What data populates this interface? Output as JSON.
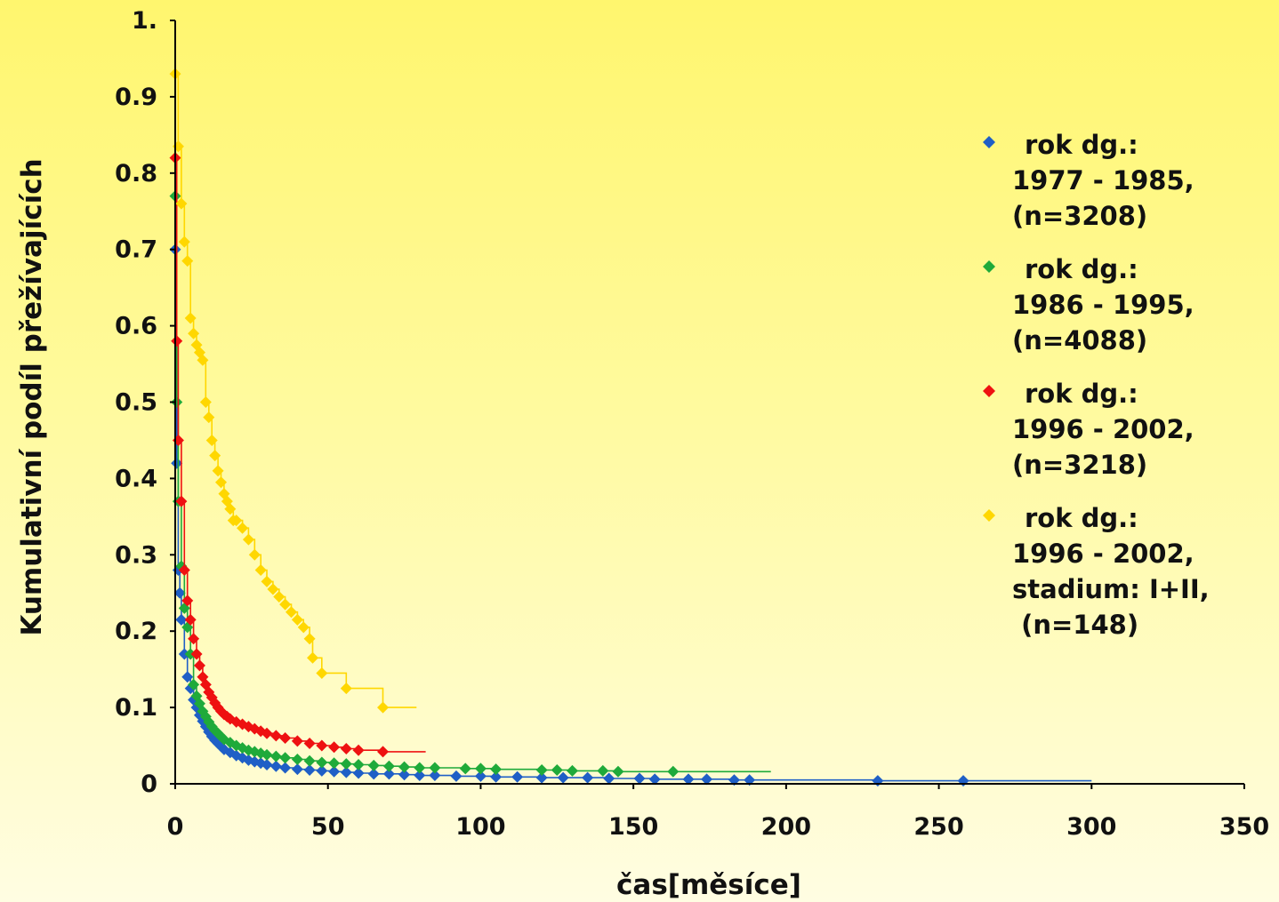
{
  "chart_data": {
    "type": "line",
    "title": "",
    "xlabel": "čas[měsíce]",
    "ylabel": "Kumulativní podíl přežívajících",
    "xlim": [
      0,
      350
    ],
    "ylim": [
      0,
      1
    ],
    "x_ticks": [
      "0",
      "50",
      "100",
      "150",
      "200",
      "250",
      "300",
      "350"
    ],
    "y_ticks": [
      "0",
      "0.1",
      "0.2",
      "0.3",
      "0.4",
      "0.5",
      "0.6",
      "0.7",
      "0.8",
      "0.9",
      "1."
    ],
    "grid": false,
    "legend_position": "right",
    "step": true,
    "series": [
      {
        "name": "rok dg.: 1977 - 1985, (n=3208)",
        "legend_lines": [
          "rok dg.:",
          "1977 - 1985,",
          "(n=3208)"
        ],
        "color": "#1f5fc6",
        "x": [
          0,
          0.5,
          1,
          1.5,
          2,
          3,
          4,
          5,
          6,
          7,
          8,
          9,
          10,
          11,
          12,
          13,
          14,
          15,
          16,
          18,
          20,
          22,
          24,
          26,
          28,
          30,
          33,
          36,
          40,
          44,
          48,
          52,
          56,
          60,
          65,
          70,
          75,
          80,
          85,
          92,
          100,
          105,
          112,
          120,
          127,
          135,
          142,
          152,
          157,
          168,
          174,
          183,
          188,
          230,
          258
        ],
        "y": [
          0.7,
          0.42,
          0.28,
          0.25,
          0.215,
          0.17,
          0.14,
          0.125,
          0.11,
          0.1,
          0.09,
          0.082,
          0.075,
          0.068,
          0.062,
          0.057,
          0.053,
          0.049,
          0.045,
          0.041,
          0.037,
          0.034,
          0.031,
          0.029,
          0.027,
          0.025,
          0.023,
          0.021,
          0.019,
          0.018,
          0.017,
          0.016,
          0.015,
          0.014,
          0.013,
          0.013,
          0.012,
          0.011,
          0.011,
          0.01,
          0.01,
          0.009,
          0.009,
          0.008,
          0.008,
          0.008,
          0.007,
          0.007,
          0.006,
          0.006,
          0.006,
          0.005,
          0.005,
          0.004,
          0.004
        ],
        "end_x": 300
      },
      {
        "name": "rok dg.: 1986 - 1995, (n=4088)",
        "legend_lines": [
          "rok dg.:",
          "1986 - 1995,",
          "(n=4088)"
        ],
        "color": "#1faa3a",
        "x": [
          0,
          0.5,
          1,
          2,
          3,
          4,
          5,
          6,
          7,
          8,
          9,
          10,
          11,
          12,
          13,
          14,
          15,
          16,
          18,
          20,
          22,
          24,
          26,
          28,
          30,
          33,
          36,
          40,
          44,
          48,
          52,
          56,
          60,
          65,
          70,
          75,
          80,
          85,
          95,
          100,
          105,
          120,
          125,
          130,
          140,
          145,
          163
        ],
        "y": [
          0.77,
          0.5,
          0.37,
          0.285,
          0.23,
          0.205,
          0.17,
          0.13,
          0.115,
          0.105,
          0.095,
          0.088,
          0.081,
          0.075,
          0.07,
          0.066,
          0.062,
          0.058,
          0.054,
          0.05,
          0.047,
          0.044,
          0.042,
          0.04,
          0.038,
          0.036,
          0.034,
          0.032,
          0.03,
          0.028,
          0.027,
          0.026,
          0.025,
          0.024,
          0.023,
          0.022,
          0.021,
          0.021,
          0.02,
          0.02,
          0.019,
          0.018,
          0.018,
          0.017,
          0.017,
          0.016,
          0.016
        ],
        "end_x": 195
      },
      {
        "name": "rok dg.: 1996 - 2002, (n=3218)",
        "legend_lines": [
          "rok dg.:",
          "1996 - 2002,",
          "(n=3218)"
        ],
        "color": "#ee1111",
        "x": [
          0,
          0.5,
          1,
          2,
          3,
          4,
          5,
          6,
          7,
          8,
          9,
          10,
          11,
          12,
          13,
          14,
          15,
          16,
          17,
          18,
          20,
          22,
          24,
          26,
          28,
          30,
          33,
          36,
          40,
          44,
          48,
          52,
          56,
          60,
          68
        ],
        "y": [
          0.82,
          0.58,
          0.45,
          0.37,
          0.28,
          0.24,
          0.215,
          0.19,
          0.17,
          0.155,
          0.14,
          0.13,
          0.12,
          0.113,
          0.106,
          0.1,
          0.095,
          0.091,
          0.088,
          0.085,
          0.081,
          0.078,
          0.075,
          0.072,
          0.069,
          0.066,
          0.063,
          0.06,
          0.056,
          0.053,
          0.05,
          0.048,
          0.046,
          0.044,
          0.042
        ],
        "end_x": 82
      },
      {
        "name": "rok dg.: 1996 - 2002, stadium: I+II, (n=148)",
        "legend_lines": [
          "rok dg.:",
          "1996 - 2002,",
          "stadium: I+II,",
          " (n=148)"
        ],
        "color": "#ffd700",
        "x": [
          0,
          1,
          2,
          3,
          4,
          5,
          6,
          7,
          8,
          9,
          10,
          11,
          12,
          13,
          14,
          15,
          16,
          17,
          18,
          19,
          20,
          22,
          24,
          26,
          28,
          30,
          32,
          34,
          36,
          38,
          40,
          42,
          44,
          45,
          48,
          56,
          68
        ],
        "y": [
          0.93,
          0.835,
          0.76,
          0.71,
          0.685,
          0.61,
          0.59,
          0.575,
          0.565,
          0.555,
          0.5,
          0.48,
          0.45,
          0.43,
          0.41,
          0.395,
          0.38,
          0.37,
          0.36,
          0.345,
          0.345,
          0.335,
          0.32,
          0.3,
          0.28,
          0.265,
          0.255,
          0.245,
          0.235,
          0.225,
          0.215,
          0.205,
          0.19,
          0.165,
          0.145,
          0.125,
          0.1
        ],
        "end_x": 79
      }
    ]
  }
}
